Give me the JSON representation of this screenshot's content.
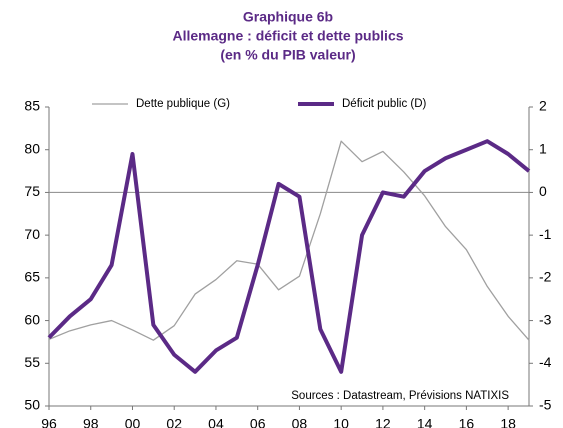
{
  "chart_data": {
    "type": "line",
    "title": [
      "Graphique 6b",
      "Allemagne : déficit et dette publics",
      "(en % du PIB valeur)"
    ],
    "annotation": "Sources : Datastream, Prévisions NATIXIS",
    "x": [
      1996,
      1997,
      1998,
      1999,
      2000,
      2001,
      2002,
      2003,
      2004,
      2005,
      2006,
      2007,
      2008,
      2009,
      2010,
      2011,
      2012,
      2013,
      2014,
      2015,
      2016,
      2017,
      2018,
      2019
    ],
    "xlim": [
      1996,
      2019
    ],
    "xticks": [
      {
        "value": 1996,
        "label": "96"
      },
      {
        "value": 1998,
        "label": "98"
      },
      {
        "value": 2000,
        "label": "00"
      },
      {
        "value": 2002,
        "label": "02"
      },
      {
        "value": 2004,
        "label": "04"
      },
      {
        "value": 2006,
        "label": "06"
      },
      {
        "value": 2008,
        "label": "08"
      },
      {
        "value": 2010,
        "label": "10"
      },
      {
        "value": 2012,
        "label": "12"
      },
      {
        "value": 2014,
        "label": "14"
      },
      {
        "value": 2016,
        "label": "16"
      },
      {
        "value": 2018,
        "label": "18"
      }
    ],
    "ylim": [
      50,
      85
    ],
    "yticks": [
      50,
      55,
      60,
      65,
      70,
      75,
      80,
      85
    ],
    "y2lim": [
      -5,
      2
    ],
    "y2ticks": [
      -5,
      -4,
      -3,
      -2,
      -1,
      0,
      1,
      2
    ],
    "series": [
      {
        "name": "Dette publique (G)",
        "color": "#a0a0a0",
        "axis": "y",
        "values": [
          57.8,
          58.8,
          59.5,
          60.0,
          58.9,
          57.7,
          59.4,
          63.1,
          64.8,
          67.0,
          66.6,
          63.6,
          65.2,
          72.5,
          81.0,
          78.6,
          79.8,
          77.4,
          74.6,
          71.0,
          68.3,
          64.0,
          60.5,
          57.7
        ]
      },
      {
        "name": "Déficit public (D)",
        "color": "#5b2a86",
        "axis": "y2",
        "values": [
          -3.4,
          -2.9,
          -2.5,
          -1.7,
          0.9,
          -3.1,
          -3.8,
          -4.2,
          -3.7,
          -3.4,
          -1.7,
          0.2,
          -0.1,
          -3.2,
          -4.2,
          -1.0,
          0.0,
          -0.1,
          0.5,
          0.8,
          1.0,
          1.2,
          0.9,
          0.5
        ]
      }
    ]
  }
}
